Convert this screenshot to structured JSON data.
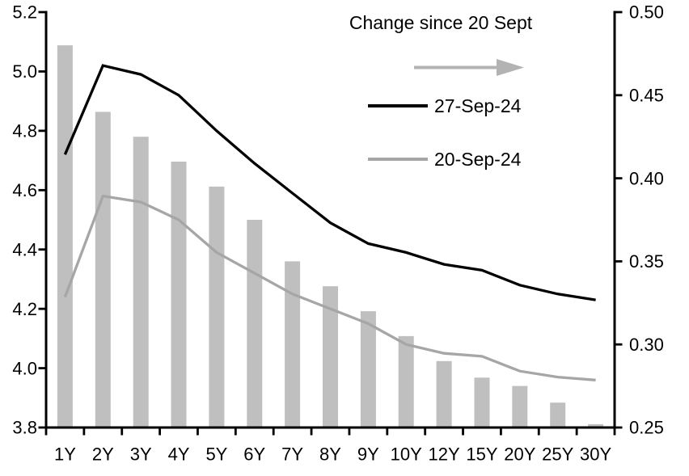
{
  "chart_data": {
    "type": "combo",
    "title": "",
    "categories": [
      "1Y",
      "2Y",
      "3Y",
      "4Y",
      "5Y",
      "6Y",
      "7Y",
      "8Y",
      "9Y",
      "10Y",
      "12Y",
      "15Y",
      "20Y",
      "25Y",
      "30Y"
    ],
    "left_axis": {
      "min": 3.8,
      "max": 5.2,
      "tick_labels": [
        "5.2",
        "5.0",
        "4.8",
        "4.6",
        "4.4",
        "4.2",
        "4.0",
        "3.8"
      ]
    },
    "right_axis": {
      "min": 0.25,
      "max": 0.5,
      "tick_labels": [
        "0.50",
        "0.45",
        "0.40",
        "0.35",
        "0.30",
        "0.25"
      ]
    },
    "grid": false,
    "legend_position": "top-center-inside",
    "series": [
      {
        "name": "Change since 20 Sept",
        "type": "bar",
        "axis": "right",
        "color": "#bfbfbf",
        "values": [
          0.48,
          0.44,
          0.425,
          0.41,
          0.395,
          0.375,
          0.35,
          0.335,
          0.32,
          0.305,
          0.29,
          0.28,
          0.275,
          0.265,
          0.252
        ]
      },
      {
        "name": "27-Sep-24",
        "type": "line",
        "axis": "left",
        "color": "#000000",
        "values": [
          4.72,
          5.02,
          4.99,
          4.92,
          4.8,
          4.69,
          4.59,
          4.49,
          4.42,
          4.39,
          4.35,
          4.33,
          4.28,
          4.25,
          4.23
        ]
      },
      {
        "name": "20-Sep-24",
        "type": "line",
        "axis": "left",
        "color": "#a6a6a6",
        "values": [
          4.24,
          4.58,
          4.56,
          4.5,
          4.39,
          4.32,
          4.25,
          4.2,
          4.15,
          4.08,
          4.05,
          4.04,
          3.99,
          3.97,
          3.96
        ]
      }
    ],
    "legend": {
      "title": "Change since 20 Sept",
      "arrow_color": "#b3b3b3",
      "line1": "27-Sep-24",
      "line2": "20-Sep-24"
    }
  },
  "colors": {
    "background": "#ffffff",
    "axis": "#000000",
    "text": "#000000"
  }
}
